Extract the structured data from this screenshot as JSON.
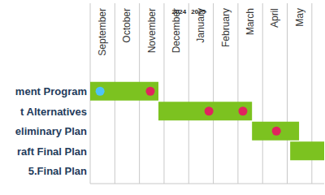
{
  "chart_data": {
    "type": "gantt",
    "categories": [
      "September",
      "October",
      "November",
      "December",
      "January",
      "February",
      "March",
      "April",
      "May"
    ],
    "year_labels": [
      "2024",
      "2025"
    ],
    "year_break": 4,
    "xlim": [
      0,
      9.5
    ],
    "grid": true,
    "color": "#7cc220",
    "tasks": [
      {
        "name": "ment Program",
        "start": 0,
        "end": 2.77
      },
      {
        "name": "t Alternatives",
        "start": 2.77,
        "end": 6.57
      },
      {
        "name": "eliminary Plan",
        "start": 6.57,
        "end": 8.48
      },
      {
        "name": "raft Final Plan",
        "start": 8.12,
        "end": 9.5
      },
      {
        "name": "5.Final Plan",
        "start": null,
        "end": null
      }
    ],
    "milestones": [
      {
        "task": 0,
        "x": 0.4,
        "color": "#4fc3f7"
      },
      {
        "task": 0,
        "x": 2.44,
        "color": "#e0245e"
      },
      {
        "task": 1,
        "x": 4.82,
        "color": "#e0245e"
      },
      {
        "task": 1,
        "x": 6.2,
        "color": "#e0245e"
      },
      {
        "task": 2,
        "x": 7.56,
        "color": "#e0245e"
      }
    ]
  }
}
